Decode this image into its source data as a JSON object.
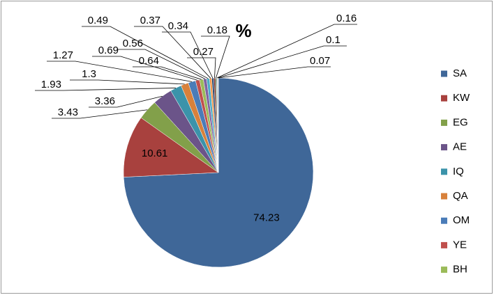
{
  "chart_data": {
    "type": "pie",
    "title": "%",
    "categories": [
      "SA",
      "KW",
      "EG",
      "AE",
      "IQ",
      "QA",
      "OM",
      "YE",
      "BH",
      null,
      null,
      null,
      null,
      null,
      null,
      null,
      null,
      null
    ],
    "values": [
      74.23,
      10.61,
      3.43,
      3.36,
      1.93,
      1.3,
      1.27,
      0.69,
      0.64,
      0.56,
      0.49,
      0.37,
      0.34,
      0.27,
      0.18,
      0.16,
      0.1,
      0.07
    ],
    "colors": [
      "#3F6798",
      "#A8413E",
      "#82A04A",
      "#6B5489",
      "#3B93AA",
      "#D8813B",
      "#4A7CB8",
      "#C0504D",
      "#9BBB59",
      "#8064A2",
      "#4BACC6",
      "#F79646",
      "#2C4D75",
      "#772C2A",
      "#5F7530",
      "#729ACA",
      "#CD7371",
      "#AFC97A"
    ]
  }
}
